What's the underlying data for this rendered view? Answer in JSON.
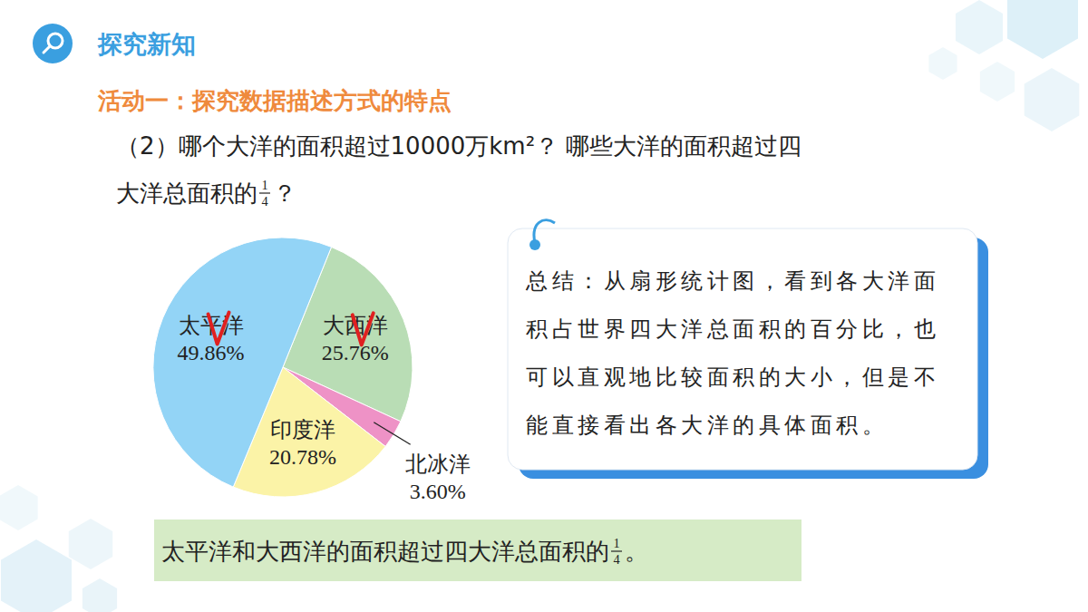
{
  "header": {
    "title": "探究新知"
  },
  "activity": {
    "title": "活动一：探究数据描述方式的特点"
  },
  "question": {
    "line1": "（2）哪个大洋的面积超过10000万km²？ 哪些大洋的面积超过四",
    "line2": {
      "before": "大洋总面积的",
      "fraction": {
        "numerator": "1",
        "denominator": "4"
      },
      "after": "？"
    }
  },
  "chart_data": {
    "type": "pie",
    "categories": [
      "大西洋",
      "北冰洋",
      "印度洋",
      "太平洋"
    ],
    "values": [
      25.76,
      3.6,
      20.78,
      49.86
    ],
    "value_labels": [
      "25.76%",
      "3.60%",
      "20.78%",
      "49.86%"
    ],
    "colors": [
      "#b9ddb5",
      "#ee92c6",
      "#fbf3a7",
      "#93d4f6"
    ],
    "data_labels": true
  },
  "summary": {
    "lines": [
      "总结：从扇形统计图，看到各大洋面",
      "积占世界四大洋总面积的百分比，也",
      "可以直观地比较面积的大小，但是不",
      "能直接看出各大洋的具体面积。"
    ]
  },
  "answer": {
    "before": "太平洋和大西洋的面积超过四大洋总面积的",
    "fraction": {
      "numerator": "1",
      "denominator": "4"
    },
    "after": "。"
  }
}
